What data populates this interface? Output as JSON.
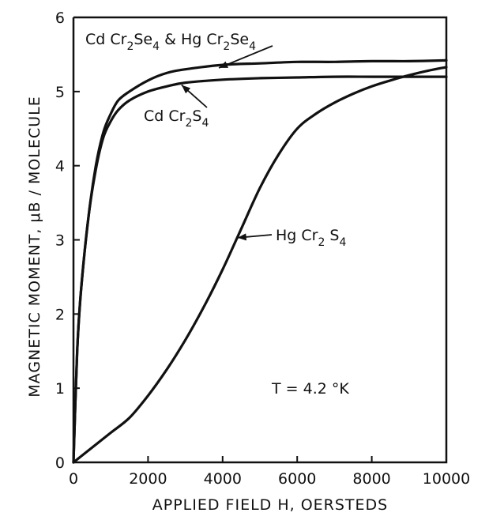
{
  "chart_data": {
    "type": "line",
    "xlabel": "APPLIED FIELD H, OERSTEDS",
    "ylabel": "MAGNETIC MOMENT, μB / MOLECULE",
    "xlim": [
      0,
      10000
    ],
    "ylim": [
      0,
      6
    ],
    "x_ticks": [
      0,
      2000,
      4000,
      6000,
      8000,
      10000
    ],
    "y_ticks": [
      0,
      1,
      2,
      3,
      4,
      5,
      6
    ],
    "grid": false,
    "series": [
      {
        "name": "CdCr2Se4 & HgCr2Se4",
        "x": [
          0,
          100,
          200,
          400,
          600,
          800,
          1000,
          1200,
          1500,
          2000,
          2500,
          3000,
          4000,
          5000,
          6000,
          7000,
          8000,
          9000,
          10000
        ],
        "y": [
          0,
          1.5,
          2.3,
          3.3,
          4.0,
          4.45,
          4.7,
          4.88,
          5.0,
          5.15,
          5.25,
          5.3,
          5.36,
          5.38,
          5.4,
          5.4,
          5.41,
          5.41,
          5.42
        ]
      },
      {
        "name": "CdCr2S4",
        "x": [
          0,
          100,
          200,
          400,
          600,
          800,
          1000,
          1200,
          1500,
          2000,
          2500,
          3000,
          4000,
          5000,
          6000,
          7000,
          8000,
          9000,
          10000
        ],
        "y": [
          0,
          1.5,
          2.3,
          3.3,
          3.95,
          4.38,
          4.6,
          4.75,
          4.88,
          5.0,
          5.07,
          5.12,
          5.16,
          5.18,
          5.19,
          5.2,
          5.2,
          5.2,
          5.2
        ]
      },
      {
        "name": "HgCr2S4",
        "x": [
          0,
          500,
          1000,
          1500,
          2000,
          2500,
          3000,
          3500,
          4000,
          4500,
          5000,
          5500,
          6000,
          6500,
          7000,
          7500,
          8000,
          8500,
          9000,
          9500,
          10000
        ],
        "y": [
          0,
          0.2,
          0.4,
          0.6,
          0.9,
          1.25,
          1.65,
          2.1,
          2.6,
          3.15,
          3.7,
          4.15,
          4.5,
          4.7,
          4.85,
          4.97,
          5.07,
          5.15,
          5.22,
          5.28,
          5.33
        ]
      }
    ],
    "annotations": [
      {
        "text": "T = 4.2 °K",
        "x": 6300,
        "y": 1.0
      }
    ]
  },
  "labels": {
    "cdse_main": "Cd Cr",
    "cdse_sub1": "2",
    "cdse_mid": "Se",
    "cdse_sub2": "4",
    "amp": " & ",
    "hgse_main": "Hg Cr",
    "hgse_sub1": "2",
    "hgse_mid": "Se",
    "hgse_sub2": "4",
    "cds_main": "Cd Cr",
    "cds_sub1": "2",
    "cds_mid": "S",
    "cds_sub2": "4",
    "hgs_main": "Hg Cr",
    "hgs_sub1": "2",
    "hgs_mid": " S",
    "hgs_sub2": "4",
    "temperature": "T = 4.2 °K"
  }
}
